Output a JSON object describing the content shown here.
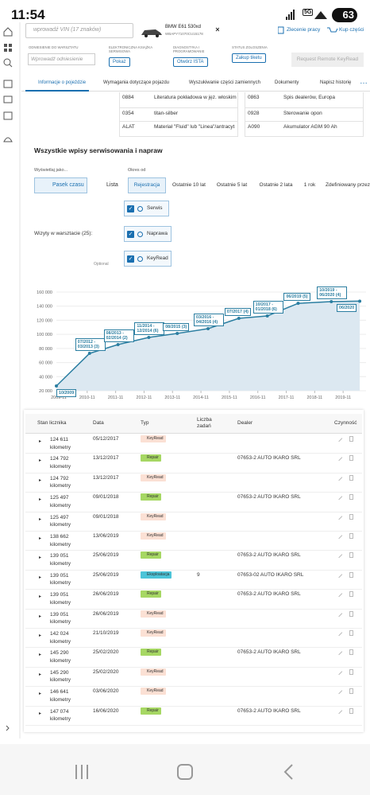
{
  "status_bar": {
    "time": "11:54",
    "network": "5G",
    "battery": "63"
  },
  "header": {
    "vin_placeholder": "wprowadź VIN (17 znaków)",
    "car_model": "BMW E61 530xd",
    "car_vin": "WBAPY71070CU15178",
    "work_order": "Zlecenie pracy",
    "buy_parts": "Kup części"
  },
  "toolbar": [
    {
      "label": "ODNIESIENIE DO WARSZTATU",
      "control": "Wprowadź odniesienie"
    },
    {
      "label": "ELEKTRONICZNA KSIĄŻKA SERWISOWA",
      "control": "Pokaż"
    },
    {
      "label": "DIAGNOSTYKA I PROGRAMOWANIE",
      "control": "Otwórz ISTA"
    },
    {
      "label": "STATUS ZGŁOSZENIA",
      "control": "Zakup tiketu"
    }
  ],
  "remote_keyread": "Request Remote KeyRead",
  "tabs": [
    "Informacje o pojeździe",
    "Wymagania dotyczące pojazdu",
    "Wyszukiwanie części zamiennych",
    "Dokumenty",
    "Napisz historię"
  ],
  "equipment_table": {
    "rows": [
      [
        "0884",
        "Literatura pokładowa w jęz. włoskim",
        "0863",
        "Spis dealerów, Europa"
      ],
      [
        "0354",
        "titan-silber",
        "0928",
        "Sterowanie opon"
      ],
      [
        "ALAT",
        "Materiał \"Fluid\" lub \"Linea\"/antracyt",
        "A090",
        "Akumulator AGM 90 Ah"
      ]
    ]
  },
  "service_section": {
    "title": "Wszystkie wpisy serwisowania i napraw",
    "display_as_label": "Wyświetlaj jako...",
    "display_options": [
      "Pasek czasu",
      "Lista"
    ],
    "period_label": "Okres od",
    "period_options": [
      "Rejestracja",
      "Ostatnie 10 lat",
      "Ostatnie 5 lat",
      "Ostatnie 2 lata",
      "1 rok",
      "Zdefiniowany przez użytkownika"
    ],
    "visits_label": "Wizyty w warsztacie (25):",
    "filters": [
      "Serwis",
      "Naprawa",
      "KeyRead"
    ],
    "optional_label": "Optional"
  },
  "chart_data": {
    "type": "line",
    "x": [
      "2009-10",
      "2010-12",
      "2011-12",
      "2013-01",
      "2014-01",
      "2015-02",
      "2016-03",
      "2017-03",
      "2018-04",
      "2019-06",
      "2020-06"
    ],
    "series": [
      {
        "color": "#2b7ea1",
        "values": [
          26800,
          73000,
          85500,
          95600,
          101300,
          108100,
          122700,
          126100,
          144000,
          146500,
          147074
        ]
      }
    ],
    "point_labels": [
      "10/2009",
      "07/2012 - 03/2013 (3)",
      "08/2013 - 02/2014 (2)",
      "11/2014 - 12/2014 (6)",
      "08/2015 (3)",
      "03/2016 - 04/2016 (4)",
      "07/2017 (4)",
      "10/2017 - 01/2018 (6)",
      "06/2019 (5)",
      "10/2019 - 06/2020 (4)",
      "06/2020"
    ],
    "area": true,
    "area_color": "#dce8f1",
    "grid": true,
    "xlim": [
      "2009-10",
      "2020-10"
    ],
    "xticks": [
      "2009-11",
      "2010-11",
      "2011-11",
      "2012-11",
      "2013-11",
      "2014-11",
      "2015-11",
      "2016-11",
      "2017-11",
      "2018-11",
      "2019-11"
    ],
    "ylim": [
      20000,
      160000
    ],
    "yticks": [
      {
        "value": 20000,
        "label": "20 000"
      },
      {
        "value": 40000,
        "label": "40 000"
      },
      {
        "value": 60000,
        "label": "60 000"
      },
      {
        "value": 80000,
        "label": "80 000"
      },
      {
        "value": 100000,
        "label": "100 000"
      },
      {
        "value": 120000,
        "label": "120 000"
      },
      {
        "value": 140000,
        "label": "140 000"
      },
      {
        "value": 160000,
        "label": "160 000"
      }
    ]
  },
  "visits_table": {
    "columns": [
      "Stan licznika",
      "Data",
      "Typ",
      "Liczba zadań",
      "Dealer",
      "Czynność"
    ],
    "rows": [
      {
        "km": "124 611 kilometry",
        "date": "05/12/2017",
        "type": "KeyRead",
        "type_color": "#fbe0d4"
      },
      {
        "km": "124 792 kilometry",
        "date": "13/12/2017",
        "type": "Repair",
        "type_color": "#a6d763",
        "dealer": "07653-2 AUTO IKARO SRL"
      },
      {
        "km": "124 792 kilometry",
        "date": "13/12/2017",
        "type": "KeyRead",
        "type_color": "#fbe0d4"
      },
      {
        "km": "125 497 kilometry",
        "date": "09/01/2018",
        "type": "Repair",
        "type_color": "#a6d763",
        "dealer": "07653-2 AUTO IKARO SRL"
      },
      {
        "km": "125 497 kilometry",
        "date": "09/01/2018",
        "type": "KeyRead",
        "type_color": "#fbe0d4"
      },
      {
        "km": "138 662 kilometry",
        "date": "13/06/2019",
        "type": "KeyRead",
        "type_color": "#fbe0d4"
      },
      {
        "km": "139 051 kilometry",
        "date": "25/06/2019",
        "type": "Repair",
        "type_color": "#a6d763",
        "dealer": "07653-2 AUTO IKARO SRL"
      },
      {
        "km": "139 051 kilometry",
        "date": "25/06/2019",
        "type": "Eksploatacja",
        "type_color": "#4cc4d8",
        "tasks": "9",
        "dealer": "07653-02 AUTO IKARO SRL"
      },
      {
        "km": "139 051 kilometry",
        "date": "26/06/2019",
        "type": "Repair",
        "type_color": "#a6d763",
        "dealer": "07653-2 AUTO IKARO SRL"
      },
      {
        "km": "139 051 kilometry",
        "date": "26/06/2019",
        "type": "KeyRead",
        "type_color": "#fbe0d4"
      },
      {
        "km": "142 024 kilometry",
        "date": "21/10/2019",
        "type": "KeyRead",
        "type_color": "#fbe0d4"
      },
      {
        "km": "145 290 kilometry",
        "date": "25/02/2020",
        "type": "Repair",
        "type_color": "#a6d763",
        "dealer": "07653-2 AUTO IKARO SRL"
      },
      {
        "km": "145 290 kilometry",
        "date": "25/02/2020",
        "type": "KeyRead",
        "type_color": "#fbe0d4"
      },
      {
        "km": "146 641 kilometry",
        "date": "03/06/2020",
        "type": "KeyRead",
        "type_color": "#fbe0d4"
      },
      {
        "km": "147 074 kilometry",
        "date": "16/06/2020",
        "type": "Repair",
        "type_color": "#a6d763",
        "dealer": "07653-2 AUTO IKARO SRL"
      }
    ]
  }
}
